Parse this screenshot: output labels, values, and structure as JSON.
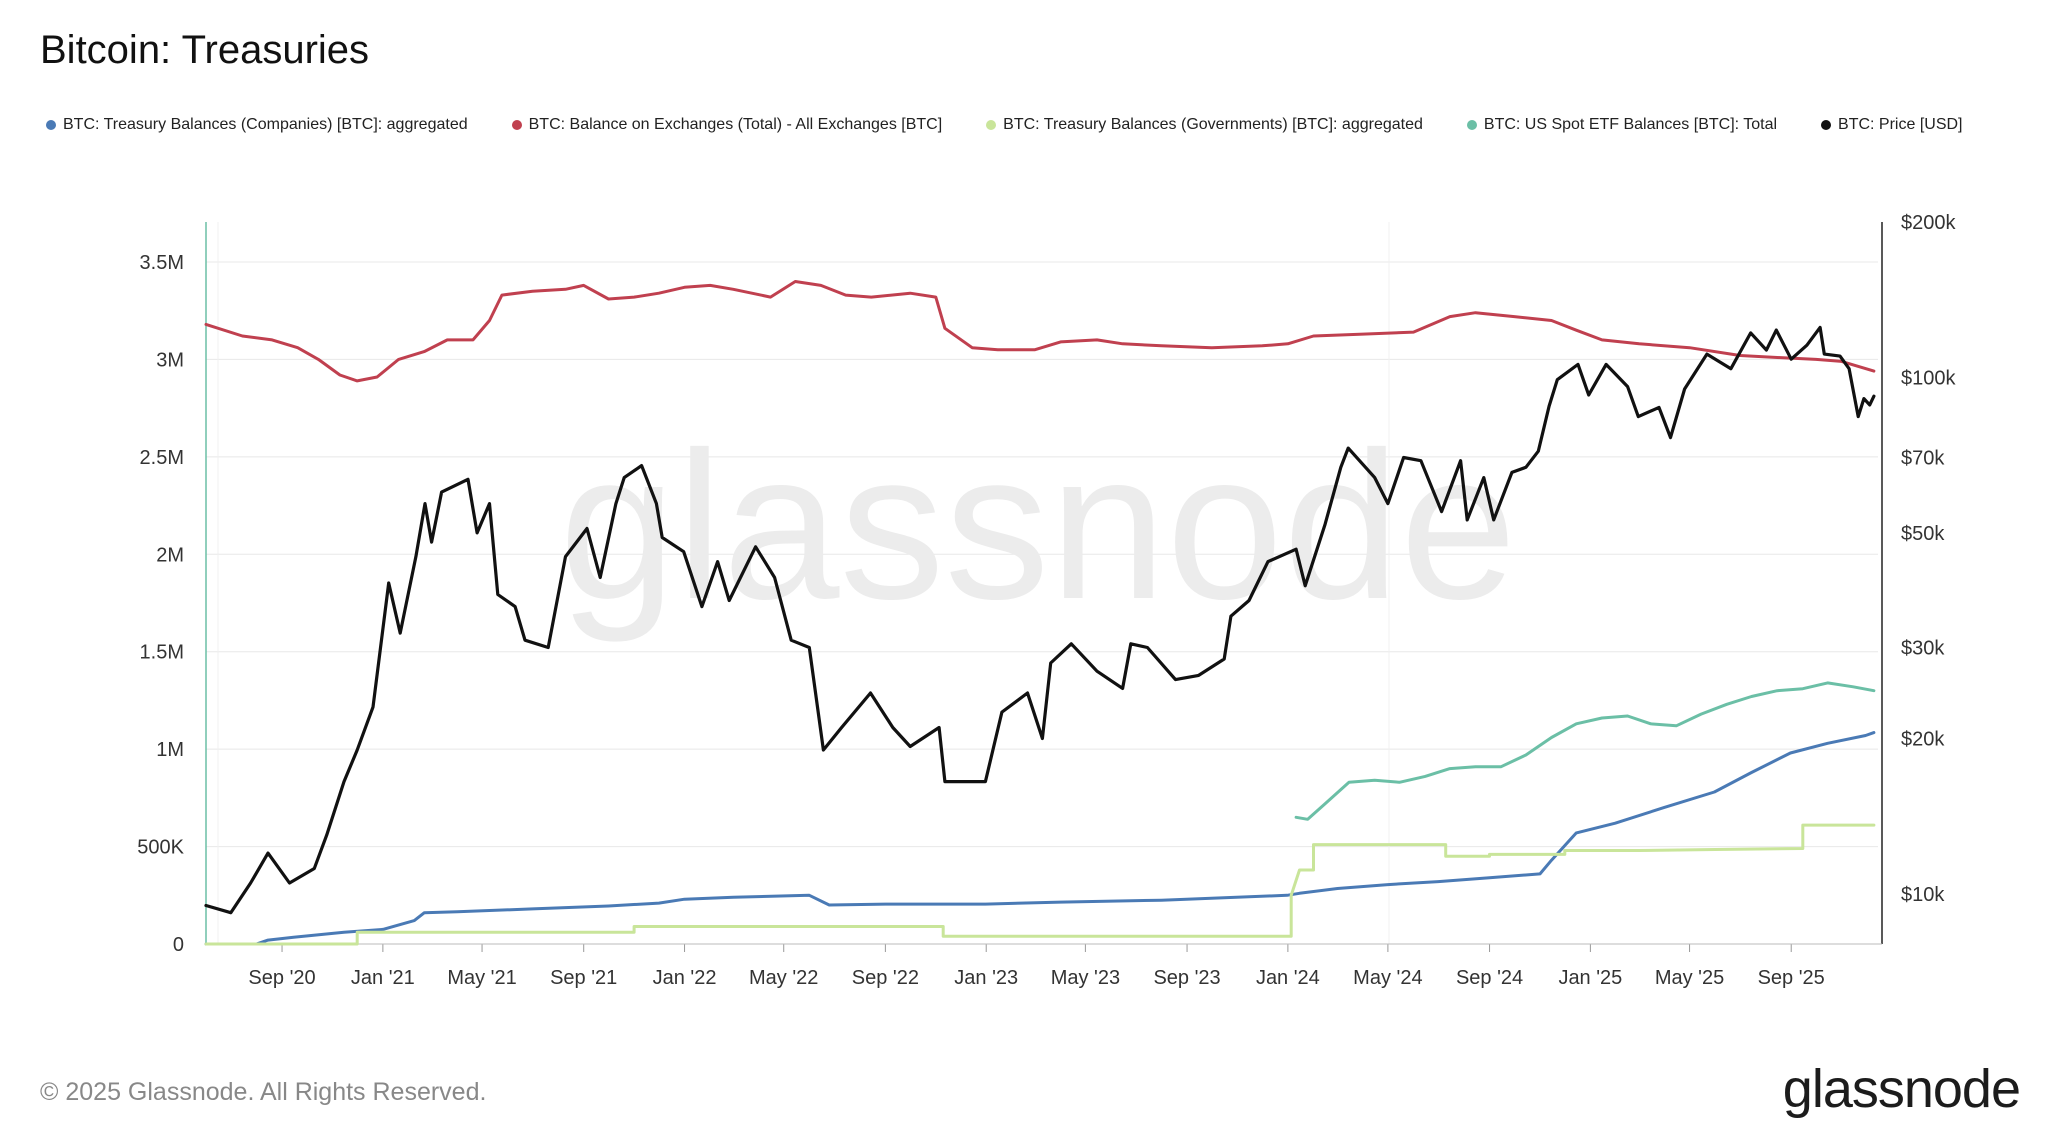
{
  "header": {
    "title": "Bitcoin: Treasuries"
  },
  "footer": {
    "copyright": "© 2025 Glassnode. All Rights Reserved.",
    "logo_text": "glassnode"
  },
  "watermark": "glassnode",
  "chart_data": {
    "type": "line",
    "title": "Bitcoin: Treasuries",
    "x_ticks": [
      "Sep '20",
      "Jan '21",
      "May '21",
      "Sep '21",
      "Jan '22",
      "May '22",
      "Sep '22",
      "Jan '23",
      "May '23",
      "Sep '23",
      "Jan '24",
      "May '24",
      "Sep '24",
      "Jan '25",
      "May '25",
      "Sep '25"
    ],
    "y_left": {
      "ticks": [
        "0",
        "500K",
        "1M",
        "1.5M",
        "2M",
        "2.5M",
        "3M",
        "3.5M"
      ],
      "range": [
        0,
        3500000
      ]
    },
    "y_right": {
      "scale": "log",
      "ticks": [
        "$10k",
        "$20k",
        "$30k",
        "$50k",
        "$70k",
        "$100k",
        "$200k"
      ],
      "range": [
        8000,
        200000
      ]
    },
    "legend_position": "top",
    "grid": true,
    "series": [
      {
        "name": "BTC: Treasury Balances (Companies) [BTC]: aggregated",
        "color": "#4a7ab5",
        "axis": "left",
        "points": [
          [
            "2020-06-01",
            0
          ],
          [
            "2020-08-01",
            0
          ],
          [
            "2020-08-15",
            20000
          ],
          [
            "2020-09-15",
            35000
          ],
          [
            "2020-11-15",
            60000
          ],
          [
            "2021-01-01",
            75000
          ],
          [
            "2021-02-08",
            120000
          ],
          [
            "2021-02-20",
            160000
          ],
          [
            "2021-04-01",
            165000
          ],
          [
            "2021-07-01",
            180000
          ],
          [
            "2021-10-01",
            195000
          ],
          [
            "2021-12-01",
            210000
          ],
          [
            "2022-01-01",
            230000
          ],
          [
            "2022-03-01",
            240000
          ],
          [
            "2022-06-01",
            250000
          ],
          [
            "2022-06-25",
            200000
          ],
          [
            "2022-09-01",
            205000
          ],
          [
            "2022-12-31",
            205000
          ],
          [
            "2023-04-01",
            215000
          ],
          [
            "2023-08-01",
            225000
          ],
          [
            "2023-12-31",
            250000
          ],
          [
            "2024-01-15",
            260000
          ],
          [
            "2024-03-01",
            285000
          ],
          [
            "2024-05-01",
            305000
          ],
          [
            "2024-07-01",
            320000
          ],
          [
            "2024-09-01",
            340000
          ],
          [
            "2024-11-01",
            360000
          ],
          [
            "2024-11-15",
            430000
          ],
          [
            "2024-12-15",
            570000
          ],
          [
            "2025-01-31",
            620000
          ],
          [
            "2025-03-31",
            700000
          ],
          [
            "2025-05-31",
            780000
          ],
          [
            "2025-07-15",
            880000
          ],
          [
            "2025-08-31",
            980000
          ],
          [
            "2025-10-15",
            1030000
          ],
          [
            "2025-11-30",
            1070000
          ],
          [
            "2025-12-10",
            1085000
          ]
        ]
      },
      {
        "name": "BTC: Balance on Exchanges (Total) - All Exchanges [BTC]",
        "color": "#c0404f",
        "axis": "left",
        "points": [
          [
            "2020-06-01",
            3180000
          ],
          [
            "2020-07-15",
            3120000
          ],
          [
            "2020-08-20",
            3100000
          ],
          [
            "2020-09-20",
            3060000
          ],
          [
            "2020-10-15",
            3000000
          ],
          [
            "2020-11-10",
            2920000
          ],
          [
            "2020-12-01",
            2890000
          ],
          [
            "2020-12-25",
            2910000
          ],
          [
            "2021-01-20",
            3000000
          ],
          [
            "2021-02-20",
            3040000
          ],
          [
            "2021-03-20",
            3100000
          ],
          [
            "2021-04-20",
            3100000
          ],
          [
            "2021-05-10",
            3200000
          ],
          [
            "2021-05-25",
            3330000
          ],
          [
            "2021-07-01",
            3350000
          ],
          [
            "2021-08-10",
            3360000
          ],
          [
            "2021-09-01",
            3380000
          ],
          [
            "2021-10-01",
            3310000
          ],
          [
            "2021-11-01",
            3320000
          ],
          [
            "2021-12-01",
            3340000
          ],
          [
            "2022-01-01",
            3370000
          ],
          [
            "2022-02-01",
            3380000
          ],
          [
            "2022-03-01",
            3360000
          ],
          [
            "2022-04-15",
            3320000
          ],
          [
            "2022-05-15",
            3400000
          ],
          [
            "2022-06-15",
            3380000
          ],
          [
            "2022-07-15",
            3330000
          ],
          [
            "2022-08-15",
            3320000
          ],
          [
            "2022-10-01",
            3340000
          ],
          [
            "2022-11-01",
            3320000
          ],
          [
            "2022-11-12",
            3160000
          ],
          [
            "2022-12-15",
            3060000
          ],
          [
            "2023-01-15",
            3050000
          ],
          [
            "2023-03-01",
            3050000
          ],
          [
            "2023-04-01",
            3090000
          ],
          [
            "2023-05-15",
            3100000
          ],
          [
            "2023-06-15",
            3080000
          ],
          [
            "2023-08-01",
            3070000
          ],
          [
            "2023-10-01",
            3060000
          ],
          [
            "2023-12-01",
            3070000
          ],
          [
            "2024-01-01",
            3080000
          ],
          [
            "2024-02-01",
            3120000
          ],
          [
            "2024-04-01",
            3130000
          ],
          [
            "2024-06-01",
            3140000
          ],
          [
            "2024-07-15",
            3220000
          ],
          [
            "2024-08-15",
            3240000
          ],
          [
            "2024-10-01",
            3220000
          ],
          [
            "2024-11-15",
            3200000
          ],
          [
            "2024-12-15",
            3150000
          ],
          [
            "2025-01-15",
            3100000
          ],
          [
            "2025-03-01",
            3080000
          ],
          [
            "2025-05-01",
            3060000
          ],
          [
            "2025-07-01",
            3020000
          ],
          [
            "2025-08-15",
            3010000
          ],
          [
            "2025-10-01",
            3000000
          ],
          [
            "2025-11-01",
            2990000
          ],
          [
            "2025-12-10",
            2940000
          ]
        ]
      },
      {
        "name": "BTC: Treasury Balances (Governments) [BTC]: aggregated",
        "color": "#c9e59a",
        "axis": "left",
        "points": [
          [
            "2020-06-01",
            0
          ],
          [
            "2020-12-01",
            0
          ],
          [
            "2020-12-01",
            60000
          ],
          [
            "2021-06-01",
            60000
          ],
          [
            "2021-11-01",
            60000
          ],
          [
            "2021-11-01",
            90000
          ],
          [
            "2022-05-01",
            90000
          ],
          [
            "2022-08-01",
            90000
          ],
          [
            "2022-11-10",
            90000
          ],
          [
            "2022-11-10",
            40000
          ],
          [
            "2023-06-01",
            40000
          ],
          [
            "2023-12-31",
            40000
          ],
          [
            "2024-01-05",
            40000
          ],
          [
            "2024-01-05",
            250000
          ],
          [
            "2024-01-15",
            380000
          ],
          [
            "2024-02-01",
            380000
          ],
          [
            "2024-02-01",
            510000
          ],
          [
            "2024-06-01",
            510000
          ],
          [
            "2024-07-10",
            510000
          ],
          [
            "2024-07-10",
            450000
          ],
          [
            "2024-09-01",
            450000
          ],
          [
            "2024-09-01",
            460000
          ],
          [
            "2024-12-01",
            460000
          ],
          [
            "2024-12-01",
            480000
          ],
          [
            "2025-03-01",
            480000
          ],
          [
            "2025-06-01",
            485000
          ],
          [
            "2025-09-15",
            490000
          ],
          [
            "2025-09-15",
            610000
          ],
          [
            "2025-12-10",
            610000
          ]
        ]
      },
      {
        "name": "BTC: US Spot ETF Balances [BTC]: Total",
        "color": "#6bbfa6",
        "axis": "left",
        "points": [
          [
            "2024-01-11",
            650000
          ],
          [
            "2024-01-25",
            640000
          ],
          [
            "2024-02-15",
            720000
          ],
          [
            "2024-03-15",
            830000
          ],
          [
            "2024-04-15",
            840000
          ],
          [
            "2024-05-15",
            830000
          ],
          [
            "2024-06-15",
            860000
          ],
          [
            "2024-07-15",
            900000
          ],
          [
            "2024-08-15",
            910000
          ],
          [
            "2024-09-15",
            910000
          ],
          [
            "2024-10-15",
            970000
          ],
          [
            "2024-11-15",
            1060000
          ],
          [
            "2024-12-15",
            1130000
          ],
          [
            "2025-01-15",
            1160000
          ],
          [
            "2025-02-15",
            1170000
          ],
          [
            "2025-03-15",
            1130000
          ],
          [
            "2025-04-15",
            1120000
          ],
          [
            "2025-05-15",
            1180000
          ],
          [
            "2025-06-15",
            1230000
          ],
          [
            "2025-07-15",
            1270000
          ],
          [
            "2025-08-15",
            1300000
          ],
          [
            "2025-09-15",
            1310000
          ],
          [
            "2025-10-15",
            1340000
          ],
          [
            "2025-11-15",
            1320000
          ],
          [
            "2025-12-10",
            1300000
          ]
        ]
      },
      {
        "name": "BTC: Price [USD]",
        "color": "#111111",
        "axis": "right",
        "points": [
          [
            "2020-06-01",
            9500
          ],
          [
            "2020-07-01",
            9200
          ],
          [
            "2020-07-25",
            10500
          ],
          [
            "2020-08-15",
            12000
          ],
          [
            "2020-09-10",
            10500
          ],
          [
            "2020-10-10",
            11200
          ],
          [
            "2020-10-25",
            13000
          ],
          [
            "2020-11-15",
            16500
          ],
          [
            "2020-12-01",
            19000
          ],
          [
            "2020-12-20",
            23000
          ],
          [
            "2021-01-08",
            40000
          ],
          [
            "2021-01-22",
            32000
          ],
          [
            "2021-02-10",
            45000
          ],
          [
            "2021-02-21",
            57000
          ],
          [
            "2021-03-01",
            48000
          ],
          [
            "2021-03-13",
            60000
          ],
          [
            "2021-04-14",
            63500
          ],
          [
            "2021-04-25",
            50000
          ],
          [
            "2021-05-10",
            57000
          ],
          [
            "2021-05-20",
            38000
          ],
          [
            "2021-06-10",
            36000
          ],
          [
            "2021-06-22",
            31000
          ],
          [
            "2021-07-20",
            30000
          ],
          [
            "2021-08-10",
            45000
          ],
          [
            "2021-09-05",
            51000
          ],
          [
            "2021-09-21",
            41000
          ],
          [
            "2021-10-10",
            57000
          ],
          [
            "2021-10-20",
            64000
          ],
          [
            "2021-11-10",
            67500
          ],
          [
            "2021-11-28",
            57000
          ],
          [
            "2021-12-05",
            49000
          ],
          [
            "2021-12-31",
            46000
          ],
          [
            "2022-01-22",
            36000
          ],
          [
            "2022-02-10",
            44000
          ],
          [
            "2022-02-24",
            37000
          ],
          [
            "2022-03-28",
            47000
          ],
          [
            "2022-04-20",
            41000
          ],
          [
            "2022-05-10",
            31000
          ],
          [
            "2022-06-01",
            30000
          ],
          [
            "2022-06-18",
            19000
          ],
          [
            "2022-07-10",
            21000
          ],
          [
            "2022-08-14",
            24500
          ],
          [
            "2022-09-10",
            21000
          ],
          [
            "2022-10-01",
            19300
          ],
          [
            "2022-11-05",
            21000
          ],
          [
            "2022-11-12",
            16500
          ],
          [
            "2022-12-31",
            16500
          ],
          [
            "2023-01-20",
            22500
          ],
          [
            "2023-02-20",
            24500
          ],
          [
            "2023-03-10",
            20000
          ],
          [
            "2023-03-20",
            28000
          ],
          [
            "2023-04-14",
            30500
          ],
          [
            "2023-05-15",
            27000
          ],
          [
            "2023-06-15",
            25000
          ],
          [
            "2023-06-25",
            30500
          ],
          [
            "2023-07-15",
            30000
          ],
          [
            "2023-08-18",
            26000
          ],
          [
            "2023-09-15",
            26500
          ],
          [
            "2023-10-16",
            28500
          ],
          [
            "2023-10-24",
            34500
          ],
          [
            "2023-11-15",
            37000
          ],
          [
            "2023-12-08",
            44000
          ],
          [
            "2024-01-11",
            46500
          ],
          [
            "2024-01-22",
            39500
          ],
          [
            "2024-02-15",
            52000
          ],
          [
            "2024-03-05",
            67000
          ],
          [
            "2024-03-14",
            73000
          ],
          [
            "2024-04-15",
            64000
          ],
          [
            "2024-05-01",
            57000
          ],
          [
            "2024-05-20",
            70000
          ],
          [
            "2024-06-10",
            69000
          ],
          [
            "2024-07-05",
            55000
          ],
          [
            "2024-07-28",
            69000
          ],
          [
            "2024-08-05",
            53000
          ],
          [
            "2024-08-25",
            64000
          ],
          [
            "2024-09-06",
            53000
          ],
          [
            "2024-09-28",
            65500
          ],
          [
            "2024-10-15",
            67000
          ],
          [
            "2024-10-30",
            72000
          ],
          [
            "2024-11-12",
            88000
          ],
          [
            "2024-11-22",
            99000
          ],
          [
            "2024-12-17",
            106000
          ],
          [
            "2024-12-30",
            92500
          ],
          [
            "2025-01-20",
            106000
          ],
          [
            "2025-02-15",
            96000
          ],
          [
            "2025-02-28",
            84000
          ],
          [
            "2025-03-25",
            87500
          ],
          [
            "2025-04-08",
            76500
          ],
          [
            "2025-04-25",
            95000
          ],
          [
            "2025-05-22",
            111000
          ],
          [
            "2025-06-20",
            104000
          ],
          [
            "2025-07-14",
            122000
          ],
          [
            "2025-08-02",
            113000
          ],
          [
            "2025-08-14",
            123500
          ],
          [
            "2025-09-01",
            108500
          ],
          [
            "2025-09-20",
            115500
          ],
          [
            "2025-10-06",
            125000
          ],
          [
            "2025-10-11",
            111000
          ],
          [
            "2025-10-30",
            110000
          ],
          [
            "2025-11-10",
            104000
          ],
          [
            "2025-11-21",
            84000
          ],
          [
            "2025-11-28",
            91000
          ],
          [
            "2025-12-05",
            88500
          ],
          [
            "2025-12-10",
            92000
          ]
        ]
      }
    ]
  }
}
